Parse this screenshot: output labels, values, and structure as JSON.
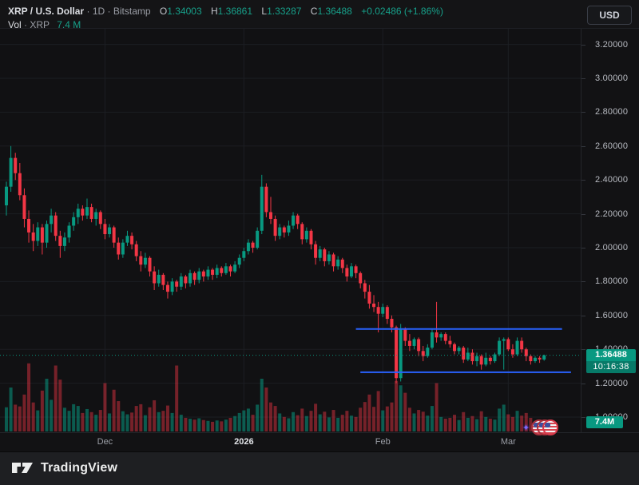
{
  "header": {
    "symbol": "XRP / U.S. Dollar",
    "dot": "·",
    "timeframe": "1D",
    "exchange": "Bitstamp",
    "ohlc": {
      "o_label": "O",
      "o_value": "1.34003",
      "h_label": "H",
      "h_value": "1.36861",
      "l_label": "L",
      "l_value": "1.33287",
      "c_label": "C",
      "c_value": "1.36488",
      "change": "+0.02486 (+1.86%)"
    },
    "currency_button": "USD"
  },
  "volume_legend": {
    "label": "Vol",
    "dot": "·",
    "symbol": "XRP",
    "value": "7.4 M"
  },
  "price_badge": {
    "value": "1.36488",
    "countdown": "10:16:38"
  },
  "volume_badge": {
    "value": "7.4M"
  },
  "footer": {
    "brand": "TradingView"
  },
  "events": {
    "sparkle_icon": "✦",
    "flag_icon_count": 3,
    "flag_type": "us-flag-economic-event"
  },
  "colors": {
    "up": "#089981",
    "down": "#f23645",
    "up_volume": "rgba(8,153,129,0.55)",
    "down_volume": "rgba(242,54,69,0.45)",
    "drawing_blue": "#2962ff",
    "current_price_line": "#089981",
    "grid": "#1c1e23",
    "axis_text": "#b8bbc2"
  },
  "chart_data": {
    "type": "candlestick",
    "title": "XRP / U.S. Dollar · 1D · Bitstamp",
    "legend_pane2": "Vol · XRP 7.4 M",
    "current_price": 1.36488,
    "countdown": "10:16:38",
    "y_axis": {
      "min": 1.0,
      "max": 3.3,
      "tick_step": 0.2,
      "ticks": [
        {
          "value": 3.2,
          "label": "3.20000"
        },
        {
          "value": 3.0,
          "label": "3.00000"
        },
        {
          "value": 2.8,
          "label": "2.80000"
        },
        {
          "value": 2.6,
          "label": "2.60000"
        },
        {
          "value": 2.4,
          "label": "2.40000"
        },
        {
          "value": 2.2,
          "label": "2.20000"
        },
        {
          "value": 2.0,
          "label": "2.00000"
        },
        {
          "value": 1.8,
          "label": "1.80000"
        },
        {
          "value": 1.6,
          "label": "1.60000"
        },
        {
          "value": 1.4,
          "label": "1.40000"
        },
        {
          "value": 1.2,
          "label": "1.20000"
        },
        {
          "value": 1.0,
          "label": "1.00000"
        }
      ]
    },
    "x_axis": {
      "months": [
        {
          "label": "Dec",
          "day_index": 22,
          "emphasis": false
        },
        {
          "label": "2026",
          "day_index": 53,
          "emphasis": true
        },
        {
          "label": "Feb",
          "day_index": 84,
          "emphasis": false
        },
        {
          "label": "Mar",
          "day_index": 112,
          "emphasis": false
        }
      ]
    },
    "levels": [
      {
        "type": "horizontal_ray",
        "price": 1.52,
        "from_day": 78,
        "to_day": 124,
        "color": "#2962ff"
      },
      {
        "type": "horizontal_ray",
        "price": 1.265,
        "from_day": 79,
        "to_day": 126,
        "color": "#2962ff"
      }
    ],
    "volume_unit": "M",
    "candles_format": [
      "date",
      "open",
      "high",
      "low",
      "close",
      "volume_M"
    ],
    "candles": [
      [
        "2025-11-09",
        2.25,
        2.39,
        2.19,
        2.36,
        55
      ],
      [
        "2025-11-10",
        2.36,
        2.6,
        2.33,
        2.53,
        100
      ],
      [
        "2025-11-11",
        2.53,
        2.56,
        2.4,
        2.44,
        61
      ],
      [
        "2025-11-12",
        2.44,
        2.5,
        2.28,
        2.31,
        57
      ],
      [
        "2025-11-13",
        2.31,
        2.35,
        2.12,
        2.17,
        84
      ],
      [
        "2025-11-14",
        2.17,
        2.22,
        2.03,
        2.09,
        155
      ],
      [
        "2025-11-15",
        2.09,
        2.14,
        1.98,
        2.04,
        66
      ],
      [
        "2025-11-16",
        2.04,
        2.15,
        2.01,
        2.12,
        48
      ],
      [
        "2025-11-17",
        2.12,
        2.14,
        1.96,
        2.03,
        93
      ],
      [
        "2025-11-18",
        2.03,
        2.16,
        2.0,
        2.14,
        120
      ],
      [
        "2025-11-19",
        2.14,
        2.23,
        2.09,
        2.19,
        72
      ],
      [
        "2025-11-20",
        2.19,
        2.21,
        2.04,
        2.07,
        150
      ],
      [
        "2025-11-21",
        2.07,
        2.1,
        1.94,
        2.01,
        118
      ],
      [
        "2025-11-22",
        2.01,
        2.09,
        1.98,
        2.06,
        54
      ],
      [
        "2025-11-23",
        2.06,
        2.15,
        2.03,
        2.13,
        47
      ],
      [
        "2025-11-24",
        2.13,
        2.21,
        2.1,
        2.18,
        62
      ],
      [
        "2025-11-25",
        2.18,
        2.26,
        2.14,
        2.23,
        58
      ],
      [
        "2025-11-26",
        2.23,
        2.25,
        2.16,
        2.19,
        42
      ],
      [
        "2025-11-27",
        2.19,
        2.29,
        2.17,
        2.24,
        51
      ],
      [
        "2025-11-28",
        2.24,
        2.26,
        2.15,
        2.17,
        44
      ],
      [
        "2025-11-29",
        2.17,
        2.23,
        2.13,
        2.21,
        38
      ],
      [
        "2025-11-30",
        2.21,
        2.22,
        2.11,
        2.14,
        49
      ],
      [
        "2025-12-01",
        2.14,
        2.17,
        2.05,
        2.08,
        110
      ],
      [
        "2025-12-02",
        2.08,
        2.14,
        2.06,
        2.12,
        41
      ],
      [
        "2025-12-03",
        2.12,
        2.13,
        2.0,
        2.03,
        95
      ],
      [
        "2025-12-04",
        2.03,
        2.06,
        1.93,
        1.96,
        69
      ],
      [
        "2025-12-05",
        1.96,
        2.05,
        1.94,
        2.03,
        46
      ],
      [
        "2025-12-06",
        2.03,
        2.1,
        2.01,
        2.07,
        39
      ],
      [
        "2025-12-07",
        2.07,
        2.09,
        1.99,
        2.02,
        43
      ],
      [
        "2025-12-08",
        2.02,
        2.04,
        1.92,
        1.95,
        58
      ],
      [
        "2025-12-09",
        1.95,
        1.98,
        1.86,
        1.9,
        62
      ],
      [
        "2025-12-10",
        1.9,
        1.97,
        1.88,
        1.94,
        37
      ],
      [
        "2025-12-11",
        1.94,
        1.95,
        1.83,
        1.86,
        55
      ],
      [
        "2025-12-12",
        1.86,
        1.89,
        1.75,
        1.79,
        71
      ],
      [
        "2025-12-13",
        1.79,
        1.87,
        1.77,
        1.84,
        44
      ],
      [
        "2025-12-14",
        1.84,
        1.85,
        1.75,
        1.78,
        47
      ],
      [
        "2025-12-15",
        1.78,
        1.8,
        1.7,
        1.74,
        59
      ],
      [
        "2025-12-16",
        1.74,
        1.82,
        1.72,
        1.8,
        42
      ],
      [
        "2025-12-17",
        1.8,
        1.81,
        1.74,
        1.77,
        150
      ],
      [
        "2025-12-18",
        1.77,
        1.85,
        1.75,
        1.83,
        38
      ],
      [
        "2025-12-19",
        1.83,
        1.84,
        1.76,
        1.79,
        31
      ],
      [
        "2025-12-20",
        1.79,
        1.87,
        1.77,
        1.85,
        29
      ],
      [
        "2025-12-21",
        1.85,
        1.86,
        1.78,
        1.81,
        27
      ],
      [
        "2025-12-22",
        1.81,
        1.88,
        1.79,
        1.86,
        30
      ],
      [
        "2025-12-23",
        1.86,
        1.87,
        1.8,
        1.83,
        26
      ],
      [
        "2025-12-24",
        1.83,
        1.89,
        1.81,
        1.87,
        24
      ],
      [
        "2025-12-25",
        1.87,
        1.88,
        1.81,
        1.84,
        22
      ],
      [
        "2025-12-26",
        1.84,
        1.9,
        1.82,
        1.88,
        25
      ],
      [
        "2025-12-27",
        1.88,
        1.89,
        1.83,
        1.85,
        23
      ],
      [
        "2025-12-28",
        1.85,
        1.91,
        1.84,
        1.89,
        27
      ],
      [
        "2025-12-29",
        1.89,
        1.9,
        1.83,
        1.86,
        31
      ],
      [
        "2025-12-30",
        1.86,
        1.92,
        1.85,
        1.9,
        35
      ],
      [
        "2025-12-31",
        1.9,
        1.96,
        1.88,
        1.94,
        42
      ],
      [
        "2026-01-01",
        1.94,
        2.0,
        1.92,
        1.98,
        48
      ],
      [
        "2026-01-02",
        1.98,
        2.05,
        1.96,
        2.03,
        52
      ],
      [
        "2026-01-03",
        2.03,
        2.04,
        1.97,
        2.0,
        38
      ],
      [
        "2026-01-04",
        2.0,
        2.12,
        1.99,
        2.1,
        61
      ],
      [
        "2026-01-05",
        2.1,
        2.43,
        2.08,
        2.36,
        120
      ],
      [
        "2026-01-06",
        2.36,
        2.38,
        2.18,
        2.21,
        100
      ],
      [
        "2026-01-07",
        2.21,
        2.3,
        2.14,
        2.17,
        66
      ],
      [
        "2026-01-08",
        2.17,
        2.19,
        2.04,
        2.07,
        58
      ],
      [
        "2026-01-09",
        2.07,
        2.14,
        2.05,
        2.12,
        41
      ],
      [
        "2026-01-10",
        2.12,
        2.13,
        2.06,
        2.09,
        33
      ],
      [
        "2026-01-11",
        2.09,
        2.16,
        2.07,
        2.13,
        30
      ],
      [
        "2026-01-12",
        2.13,
        2.21,
        2.11,
        2.19,
        44
      ],
      [
        "2026-01-13",
        2.19,
        2.2,
        2.11,
        2.14,
        37
      ],
      [
        "2026-01-14",
        2.14,
        2.15,
        2.02,
        2.05,
        52
      ],
      [
        "2026-01-15",
        2.05,
        2.12,
        2.03,
        2.1,
        35
      ],
      [
        "2026-01-16",
        2.1,
        2.11,
        1.99,
        2.02,
        47
      ],
      [
        "2026-01-17",
        2.02,
        2.04,
        1.9,
        1.94,
        63
      ],
      [
        "2026-01-18",
        1.94,
        2.01,
        1.92,
        1.99,
        39
      ],
      [
        "2026-01-19",
        1.99,
        2.0,
        1.89,
        1.92,
        45
      ],
      [
        "2026-01-20",
        1.92,
        1.98,
        1.9,
        1.96,
        32
      ],
      [
        "2026-01-21",
        1.96,
        1.97,
        1.86,
        1.89,
        49
      ],
      [
        "2026-01-22",
        1.89,
        1.95,
        1.87,
        1.93,
        31
      ],
      [
        "2026-01-23",
        1.93,
        1.94,
        1.85,
        1.88,
        38
      ],
      [
        "2026-01-24",
        1.88,
        1.9,
        1.8,
        1.83,
        47
      ],
      [
        "2026-01-25",
        1.83,
        1.91,
        1.82,
        1.89,
        36
      ],
      [
        "2026-01-26",
        1.89,
        1.9,
        1.82,
        1.85,
        33
      ],
      [
        "2026-01-27",
        1.85,
        1.86,
        1.76,
        1.79,
        54
      ],
      [
        "2026-01-28",
        1.79,
        1.81,
        1.7,
        1.74,
        67
      ],
      [
        "2026-01-29",
        1.74,
        1.78,
        1.64,
        1.67,
        84
      ],
      [
        "2026-01-30",
        1.67,
        1.72,
        1.62,
        1.65,
        56
      ],
      [
        "2026-01-31",
        1.65,
        1.68,
        1.5,
        1.61,
        92
      ],
      [
        "2026-02-01",
        1.61,
        1.67,
        1.59,
        1.65,
        48
      ],
      [
        "2026-02-02",
        1.65,
        1.66,
        1.55,
        1.58,
        57
      ],
      [
        "2026-02-03",
        1.58,
        1.6,
        1.5,
        1.53,
        66
      ],
      [
        "2026-02-04",
        1.53,
        1.54,
        1.2,
        1.23,
        115
      ],
      [
        "2026-02-05",
        1.23,
        1.55,
        1.21,
        1.52,
        105
      ],
      [
        "2026-02-06",
        1.52,
        1.53,
        1.42,
        1.45,
        88
      ],
      [
        "2026-02-07",
        1.45,
        1.49,
        1.39,
        1.42,
        54
      ],
      [
        "2026-02-08",
        1.42,
        1.47,
        1.4,
        1.46,
        41
      ],
      [
        "2026-02-09",
        1.46,
        1.47,
        1.36,
        1.39,
        49
      ],
      [
        "2026-02-10",
        1.39,
        1.42,
        1.33,
        1.36,
        45
      ],
      [
        "2026-02-11",
        1.36,
        1.43,
        1.35,
        1.41,
        36
      ],
      [
        "2026-02-12",
        1.41,
        1.52,
        1.4,
        1.5,
        58
      ],
      [
        "2026-02-13",
        1.5,
        1.68,
        1.44,
        1.47,
        110
      ],
      [
        "2026-02-14",
        1.47,
        1.5,
        1.45,
        1.49,
        33
      ],
      [
        "2026-02-15",
        1.49,
        1.5,
        1.43,
        1.45,
        29
      ],
      [
        "2026-02-16",
        1.45,
        1.48,
        1.41,
        1.43,
        31
      ],
      [
        "2026-02-17",
        1.43,
        1.44,
        1.37,
        1.39,
        38
      ],
      [
        "2026-02-18",
        1.39,
        1.42,
        1.37,
        1.41,
        26
      ],
      [
        "2026-02-19",
        1.41,
        1.42,
        1.32,
        1.34,
        44
      ],
      [
        "2026-02-20",
        1.34,
        1.41,
        1.33,
        1.38,
        31
      ],
      [
        "2026-02-21",
        1.38,
        1.4,
        1.31,
        1.33,
        35
      ],
      [
        "2026-02-22",
        1.33,
        1.38,
        1.3,
        1.36,
        28
      ],
      [
        "2026-02-23",
        1.36,
        1.37,
        1.28,
        1.31,
        46
      ],
      [
        "2026-02-24",
        1.31,
        1.38,
        1.3,
        1.35,
        33
      ],
      [
        "2026-02-25",
        1.35,
        1.36,
        1.31,
        1.33,
        29
      ],
      [
        "2026-02-26",
        1.33,
        1.38,
        1.32,
        1.37,
        27
      ],
      [
        "2026-02-27",
        1.37,
        1.47,
        1.36,
        1.45,
        52
      ],
      [
        "2026-02-28",
        1.45,
        1.47,
        1.28,
        1.46,
        61
      ],
      [
        "2026-03-01",
        1.46,
        1.47,
        1.39,
        1.4,
        39
      ],
      [
        "2026-03-02",
        1.4,
        1.43,
        1.35,
        1.37,
        33
      ],
      [
        "2026-03-03",
        1.37,
        1.47,
        1.36,
        1.45,
        47
      ],
      [
        "2026-03-04",
        1.45,
        1.47,
        1.38,
        1.4,
        36
      ],
      [
        "2026-03-05",
        1.4,
        1.41,
        1.33,
        1.36,
        42
      ],
      [
        "2026-03-06",
        1.36,
        1.37,
        1.31,
        1.33,
        31
      ],
      [
        "2026-03-07",
        1.33,
        1.36,
        1.32,
        1.35,
        24
      ],
      [
        "2026-03-08",
        1.35,
        1.36,
        1.32,
        1.34,
        22
      ],
      [
        "2026-03-09",
        1.34003,
        1.36861,
        1.33287,
        1.36488,
        7.4
      ]
    ]
  }
}
